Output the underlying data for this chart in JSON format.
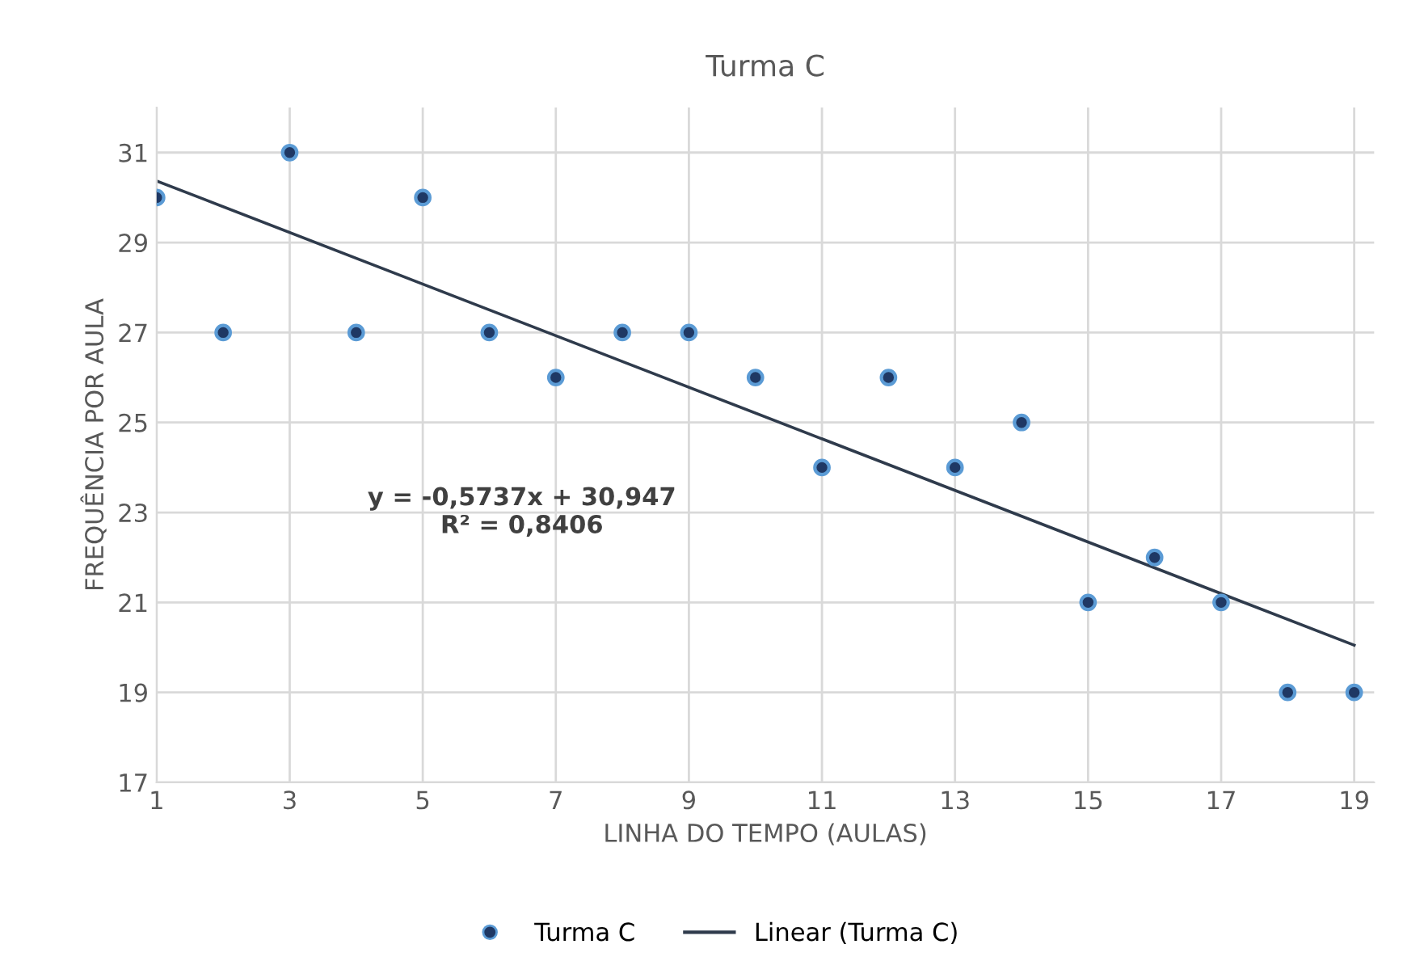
{
  "chart_data": {
    "type": "scatter",
    "title": "Turma C",
    "xlabel": "LINHA DO TEMPO (AULAS)",
    "ylabel": "FREQUÊNCIA POR AULA",
    "x": [
      1,
      2,
      3,
      4,
      5,
      6,
      7,
      8,
      9,
      10,
      11,
      12,
      13,
      14,
      15,
      16,
      17,
      18,
      19
    ],
    "series": [
      {
        "name": "Turma C",
        "color": "#1f3864",
        "marker": "circle",
        "values": [
          30,
          27,
          31,
          27,
          30,
          27,
          26,
          27,
          27,
          26,
          24,
          26,
          24,
          25,
          21,
          22,
          21,
          19,
          19
        ]
      },
      {
        "name": "Linear (Turma C)",
        "type": "line",
        "color": "#2f3b4c",
        "line_style": "solid",
        "x": [
          1,
          19
        ],
        "values": [
          30.37,
          20.05
        ]
      }
    ],
    "annotations": [
      "y = -0,5737x + 30,947\nR² = 0,8406"
    ],
    "xlim": [
      1,
      19.3
    ],
    "xticks": [
      1,
      3,
      5,
      7,
      9,
      11,
      13,
      15,
      17,
      19
    ],
    "ylim": [
      17,
      32
    ],
    "yticks": [
      17,
      19,
      21,
      23,
      25,
      27,
      29,
      31
    ],
    "grid": true,
    "legend": "bottom"
  }
}
